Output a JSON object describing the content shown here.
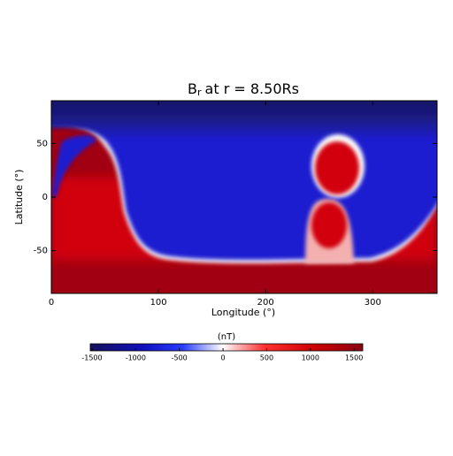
{
  "chart_data": {
    "type": "heatmap",
    "title": {
      "main": "B",
      "sub": "r",
      "rest": "at r = 8.50Rs"
    },
    "x_label": "Longitude (°)",
    "y_label": "Latitude (°)",
    "xlim": [
      0,
      360
    ],
    "xticks": [
      0,
      100,
      200,
      300
    ],
    "ylim": [
      -90,
      90
    ],
    "yticks": [
      -50,
      0,
      50
    ],
    "colorbar": {
      "label": "(nT)",
      "lim": [
        -1520,
        1600
      ],
      "ticks": [
        -1500,
        -1000,
        -500,
        0,
        500,
        1000,
        1500
      ]
    }
  }
}
